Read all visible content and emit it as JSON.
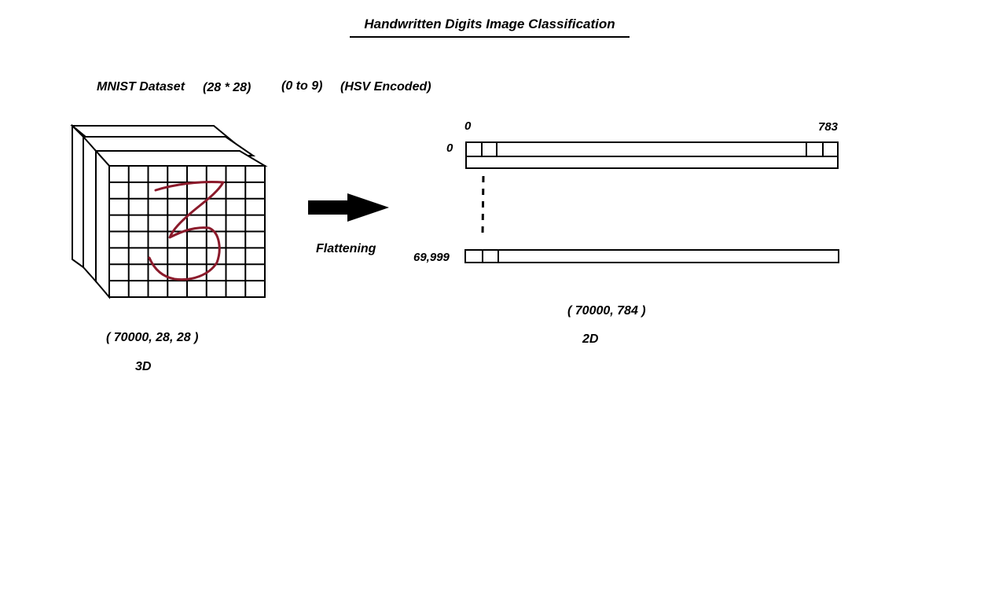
{
  "title": "Handwritten Digits Image Classification",
  "dataset": {
    "name": "MNIST Dataset",
    "image_size": "(28 * 28)",
    "label_range": "(0 to 9)",
    "encoding": "(HSV Encoded)"
  },
  "input_tensor": {
    "shape": "( 70000, 28, 28 )",
    "dimension": "3D",
    "digit_shown": "3",
    "digit_color": "#8b1a2b"
  },
  "transform": {
    "label": "Flattening"
  },
  "output_matrix": {
    "col_start": "0",
    "col_end": "783",
    "row_start": "0",
    "row_end": "69,999",
    "shape": "( 70000, 784 )",
    "dimension": "2D"
  }
}
